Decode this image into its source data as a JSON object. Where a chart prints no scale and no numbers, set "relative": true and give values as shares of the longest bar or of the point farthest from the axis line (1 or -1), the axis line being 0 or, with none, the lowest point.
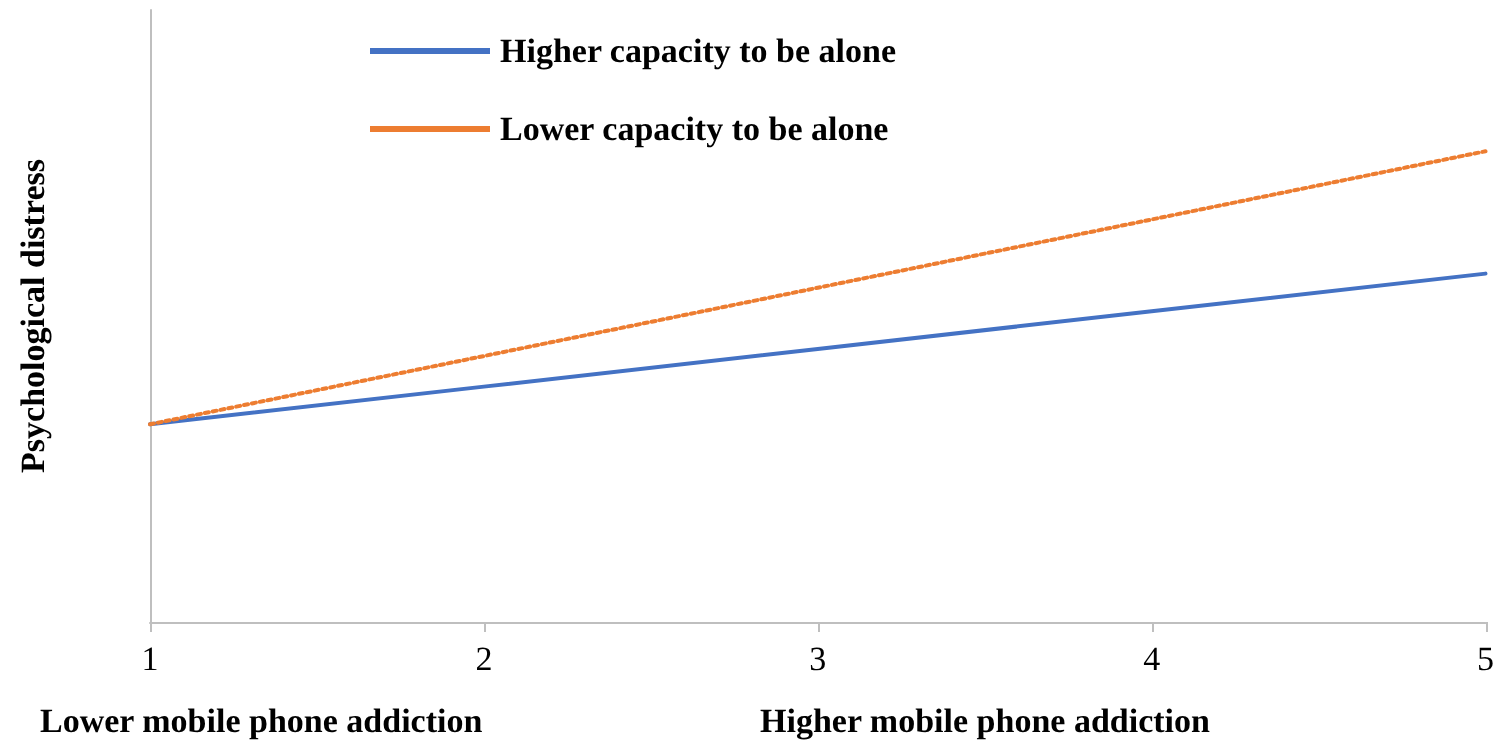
{
  "chart_data": {
    "type": "line",
    "relative": true,
    "ylabel": "Psychological distress",
    "x": [
      1,
      2,
      3,
      4,
      5
    ],
    "xlim": [
      1,
      5
    ],
    "xticks": [
      1,
      2,
      3,
      4,
      5
    ],
    "series": [
      {
        "name": "Higher capacity to be alone",
        "color": "#4472c4",
        "line_style": "solid",
        "values": [
          0.42,
          0.5,
          0.58,
          0.66,
          0.74
        ]
      },
      {
        "name": "Lower capacity to be alone",
        "color": "#ed7d31",
        "line_style": "dotted",
        "values": [
          0.42,
          0.565,
          0.71,
          0.855,
          1
        ]
      }
    ],
    "annotations": [
      "Lower mobile phone addiction",
      "Higher mobile phone addiction"
    ],
    "legend": "top",
    "marker": "none",
    "grid": false
  }
}
